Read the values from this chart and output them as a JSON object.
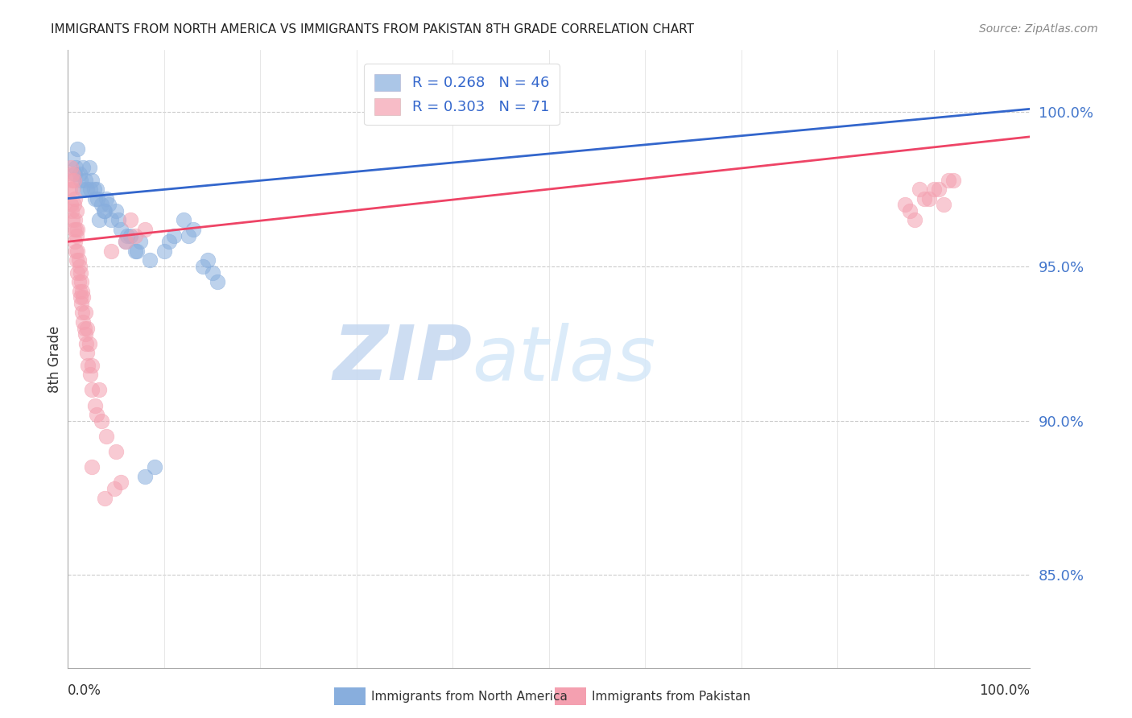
{
  "title": "IMMIGRANTS FROM NORTH AMERICA VS IMMIGRANTS FROM PAKISTAN 8TH GRADE CORRELATION CHART",
  "source": "Source: ZipAtlas.com",
  "ylabel": "8th Grade",
  "ylabel_ticks": [
    "85.0%",
    "90.0%",
    "95.0%",
    "100.0%"
  ],
  "ylabel_values": [
    85.0,
    90.0,
    95.0,
    100.0
  ],
  "xlim": [
    0.0,
    100.0
  ],
  "ylim": [
    82.0,
    102.0
  ],
  "legend_blue_label": "Immigrants from North America",
  "legend_pink_label": "Immigrants from Pakistan",
  "legend_blue_text": "R = 0.268   N = 46",
  "legend_pink_text": "R = 0.303   N = 71",
  "watermark_zip": "ZIP",
  "watermark_atlas": "atlas",
  "blue_color": "#88AEDD",
  "pink_color": "#F4A0B0",
  "blue_line_color": "#3366CC",
  "pink_line_color": "#EE4466",
  "blue_x": [
    0.5,
    0.8,
    1.0,
    1.2,
    1.5,
    1.6,
    1.8,
    2.0,
    2.2,
    2.5,
    2.8,
    3.0,
    3.2,
    3.5,
    3.8,
    4.0,
    4.5,
    5.0,
    5.5,
    6.0,
    6.5,
    7.0,
    7.5,
    8.0,
    9.0,
    10.0,
    11.0,
    12.0,
    13.0,
    14.0,
    15.0,
    2.3,
    3.1,
    3.7,
    4.2,
    5.2,
    6.2,
    7.2,
    8.5,
    10.5,
    12.5,
    14.5,
    15.5,
    0.7,
    1.3,
    2.7
  ],
  "blue_y": [
    98.5,
    98.2,
    98.8,
    98.0,
    97.5,
    98.2,
    97.8,
    97.5,
    98.2,
    97.8,
    97.2,
    97.5,
    96.5,
    97.0,
    96.8,
    97.2,
    96.5,
    96.8,
    96.2,
    95.8,
    96.0,
    95.5,
    95.8,
    88.2,
    88.5,
    95.5,
    96.0,
    96.5,
    96.2,
    95.0,
    94.8,
    97.5,
    97.2,
    96.8,
    97.0,
    96.5,
    96.0,
    95.5,
    95.2,
    95.8,
    96.0,
    95.2,
    94.5,
    98.0,
    97.8,
    97.5
  ],
  "pink_x": [
    0.2,
    0.3,
    0.3,
    0.4,
    0.4,
    0.5,
    0.5,
    0.5,
    0.6,
    0.6,
    0.6,
    0.7,
    0.7,
    0.7,
    0.8,
    0.8,
    0.9,
    0.9,
    0.9,
    1.0,
    1.0,
    1.0,
    1.1,
    1.1,
    1.2,
    1.2,
    1.3,
    1.3,
    1.4,
    1.4,
    1.5,
    1.5,
    1.6,
    1.6,
    1.7,
    1.8,
    1.8,
    1.9,
    2.0,
    2.0,
    2.1,
    2.2,
    2.3,
    2.5,
    2.5,
    2.8,
    3.0,
    3.2,
    3.5,
    4.0,
    4.5,
    5.0,
    6.0,
    7.0,
    8.0,
    2.5,
    3.8,
    4.8,
    5.5,
    6.5,
    87.0,
    90.0,
    92.0,
    87.5,
    89.0,
    88.5,
    91.0,
    88.0,
    89.5,
    90.5,
    91.5
  ],
  "pink_y": [
    97.5,
    97.0,
    98.2,
    96.8,
    97.8,
    96.5,
    97.5,
    98.0,
    96.2,
    97.0,
    97.8,
    95.8,
    96.5,
    97.2,
    95.5,
    96.2,
    95.2,
    96.0,
    96.8,
    94.8,
    95.5,
    96.2,
    94.5,
    95.2,
    94.2,
    95.0,
    94.0,
    94.8,
    93.8,
    94.5,
    93.5,
    94.2,
    93.2,
    94.0,
    93.0,
    92.8,
    93.5,
    92.5,
    92.2,
    93.0,
    91.8,
    92.5,
    91.5,
    91.0,
    91.8,
    90.5,
    90.2,
    91.0,
    90.0,
    89.5,
    95.5,
    89.0,
    95.8,
    96.0,
    96.2,
    88.5,
    87.5,
    87.8,
    88.0,
    96.5,
    97.0,
    97.5,
    97.8,
    96.8,
    97.2,
    97.5,
    97.0,
    96.5,
    97.2,
    97.5,
    97.8
  ]
}
